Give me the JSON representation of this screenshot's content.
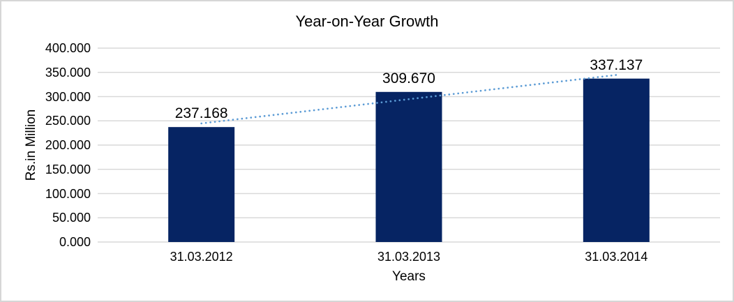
{
  "chart_data": {
    "type": "bar",
    "title": "Year-on-Year Growth",
    "xlabel": "Years",
    "ylabel": "Rs.in Million",
    "categories": [
      "31.03.2012",
      "31.03.2013",
      "31.03.2014"
    ],
    "values": [
      237.168,
      309.67,
      337.137
    ],
    "value_labels": [
      "237.168",
      "309.670",
      "337.137"
    ],
    "ylim": [
      0,
      400
    ],
    "yticks": [
      {
        "value": 0,
        "label": "0.000"
      },
      {
        "value": 50,
        "label": "50.000"
      },
      {
        "value": 100,
        "label": "100.000"
      },
      {
        "value": 150,
        "label": "150.000"
      },
      {
        "value": 200,
        "label": "200.000"
      },
      {
        "value": 250,
        "label": "250.000"
      },
      {
        "value": 300,
        "label": "300.000"
      },
      {
        "value": 350,
        "label": "350.000"
      },
      {
        "value": 400,
        "label": "400.000"
      }
    ],
    "grid": true,
    "legend": "none",
    "trendline": {
      "type": "linear",
      "style": "dotted"
    },
    "colors": {
      "bar": "#062463",
      "gridline": "#d9d9d9",
      "trendline": "#5B9BD5",
      "text": "#000000"
    }
  }
}
